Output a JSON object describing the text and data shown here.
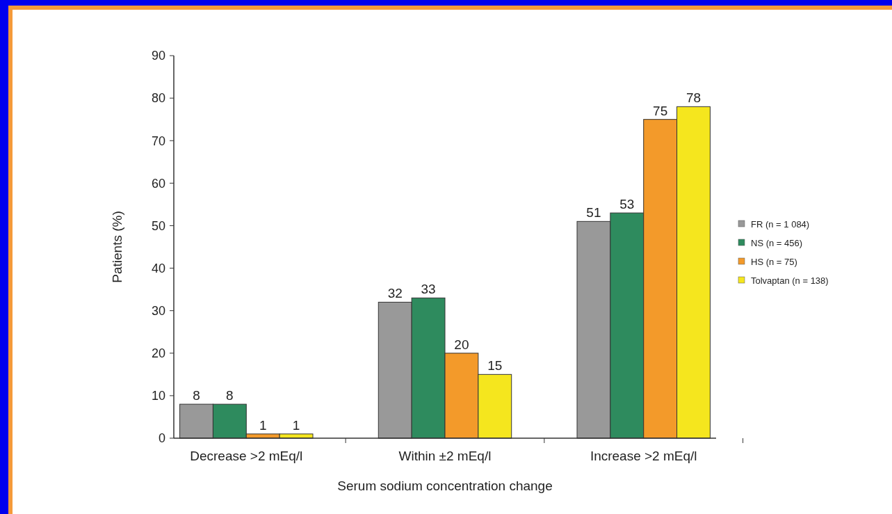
{
  "chart_data": {
    "type": "bar",
    "xlabel": "Serum sodium concentration change",
    "ylabel": "Patients (%)",
    "categories": [
      "Decrease >2 mEq/l",
      "Within ±2 mEq/l",
      "Increase >2 mEq/l"
    ],
    "series": [
      {
        "name": "FR (n = 1 084)",
        "color": "#999999",
        "values": [
          8,
          32,
          51
        ]
      },
      {
        "name": "NS (n = 456)",
        "color": "#2e8b5e",
        "values": [
          8,
          33,
          53
        ]
      },
      {
        "name": "HS (n = 75)",
        "color": "#f39a2a",
        "values": [
          1,
          20,
          75
        ]
      },
      {
        "name": "Tolvaptan (n = 138)",
        "color": "#f5e61e",
        "values": [
          1,
          15,
          78
        ]
      }
    ],
    "ylim": [
      0,
      90
    ],
    "yticks": [
      0,
      10,
      20,
      30,
      40,
      50,
      60,
      70,
      80,
      90
    ],
    "data_labels": true,
    "legend": "right"
  }
}
